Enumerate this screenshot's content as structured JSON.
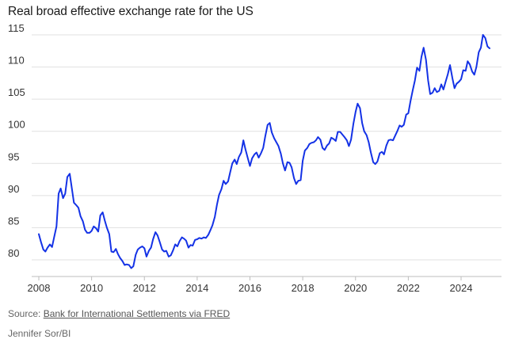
{
  "title": "Real broad effective exchange rate for the US",
  "source_prefix": "Source: ",
  "source_link": "Bank for International Settlements via FRED",
  "credit": "Jennifer Sor/BI",
  "colors": {
    "line": "#1432e6",
    "grid": "#e0e0e0",
    "axis": "#bdbdbd"
  },
  "chart_data": {
    "type": "line",
    "title": "Real broad effective exchange rate for the US",
    "xlabel": "",
    "ylabel": "",
    "xlim": [
      2007.5,
      2025.5
    ],
    "ylim": [
      78,
      116
    ],
    "grid": true,
    "x_ticks": [
      2008,
      2010,
      2012,
      2014,
      2016,
      2018,
      2020,
      2022,
      2024
    ],
    "y_ticks": [
      80,
      85,
      90,
      95,
      100,
      105,
      110,
      115
    ],
    "series": [
      {
        "name": "Real broad effective exchange rate",
        "points": [
          [
            2008.0,
            84.0
          ],
          [
            2008.08,
            82.8
          ],
          [
            2008.17,
            81.6
          ],
          [
            2008.25,
            81.3
          ],
          [
            2008.33,
            81.9
          ],
          [
            2008.42,
            82.4
          ],
          [
            2008.5,
            82.0
          ],
          [
            2008.58,
            83.5
          ],
          [
            2008.67,
            85.2
          ],
          [
            2008.75,
            90.3
          ],
          [
            2008.83,
            91.1
          ],
          [
            2008.92,
            89.6
          ],
          [
            2009.0,
            90.3
          ],
          [
            2009.08,
            92.9
          ],
          [
            2009.17,
            93.4
          ],
          [
            2009.25,
            91.2
          ],
          [
            2009.33,
            88.9
          ],
          [
            2009.42,
            88.5
          ],
          [
            2009.5,
            88.1
          ],
          [
            2009.58,
            86.8
          ],
          [
            2009.67,
            86.0
          ],
          [
            2009.75,
            84.7
          ],
          [
            2009.83,
            84.2
          ],
          [
            2009.92,
            84.2
          ],
          [
            2010.0,
            84.5
          ],
          [
            2010.08,
            85.2
          ],
          [
            2010.17,
            84.9
          ],
          [
            2010.25,
            84.4
          ],
          [
            2010.33,
            86.9
          ],
          [
            2010.42,
            87.4
          ],
          [
            2010.5,
            86.1
          ],
          [
            2010.58,
            85.0
          ],
          [
            2010.67,
            84.0
          ],
          [
            2010.75,
            81.3
          ],
          [
            2010.83,
            81.2
          ],
          [
            2010.92,
            81.7
          ],
          [
            2011.0,
            80.9
          ],
          [
            2011.08,
            80.3
          ],
          [
            2011.17,
            79.8
          ],
          [
            2011.25,
            79.2
          ],
          [
            2011.33,
            79.3
          ],
          [
            2011.42,
            79.2
          ],
          [
            2011.5,
            78.7
          ],
          [
            2011.58,
            79.0
          ],
          [
            2011.67,
            80.8
          ],
          [
            2011.75,
            81.6
          ],
          [
            2011.83,
            81.9
          ],
          [
            2011.92,
            82.1
          ],
          [
            2012.0,
            81.8
          ],
          [
            2012.08,
            80.5
          ],
          [
            2012.17,
            81.4
          ],
          [
            2012.25,
            81.9
          ],
          [
            2012.33,
            83.2
          ],
          [
            2012.42,
            84.3
          ],
          [
            2012.5,
            83.8
          ],
          [
            2012.58,
            82.8
          ],
          [
            2012.67,
            81.6
          ],
          [
            2012.75,
            81.3
          ],
          [
            2012.83,
            81.4
          ],
          [
            2012.92,
            80.5
          ],
          [
            2013.0,
            80.7
          ],
          [
            2013.08,
            81.4
          ],
          [
            2013.17,
            82.4
          ],
          [
            2013.25,
            82.1
          ],
          [
            2013.33,
            82.9
          ],
          [
            2013.42,
            83.5
          ],
          [
            2013.5,
            83.3
          ],
          [
            2013.58,
            83.0
          ],
          [
            2013.67,
            81.9
          ],
          [
            2013.75,
            82.3
          ],
          [
            2013.83,
            82.2
          ],
          [
            2013.92,
            83.1
          ],
          [
            2014.0,
            83.2
          ],
          [
            2014.08,
            83.4
          ],
          [
            2014.17,
            83.3
          ],
          [
            2014.25,
            83.5
          ],
          [
            2014.33,
            83.4
          ],
          [
            2014.42,
            83.9
          ],
          [
            2014.5,
            84.6
          ],
          [
            2014.58,
            85.4
          ],
          [
            2014.67,
            86.7
          ],
          [
            2014.75,
            88.6
          ],
          [
            2014.83,
            90.1
          ],
          [
            2014.92,
            91.0
          ],
          [
            2015.0,
            92.3
          ],
          [
            2015.08,
            91.8
          ],
          [
            2015.17,
            92.2
          ],
          [
            2015.25,
            93.6
          ],
          [
            2015.33,
            95.0
          ],
          [
            2015.42,
            95.6
          ],
          [
            2015.5,
            94.9
          ],
          [
            2015.58,
            96.0
          ],
          [
            2015.67,
            96.7
          ],
          [
            2015.75,
            98.6
          ],
          [
            2015.83,
            97.2
          ],
          [
            2015.92,
            95.8
          ],
          [
            2016.0,
            94.6
          ],
          [
            2016.08,
            95.8
          ],
          [
            2016.17,
            96.4
          ],
          [
            2016.25,
            96.7
          ],
          [
            2016.33,
            95.9
          ],
          [
            2016.42,
            96.6
          ],
          [
            2016.5,
            97.4
          ],
          [
            2016.58,
            99.2
          ],
          [
            2016.67,
            101.0
          ],
          [
            2016.75,
            101.3
          ],
          [
            2016.83,
            99.8
          ],
          [
            2016.92,
            98.9
          ],
          [
            2017.0,
            98.3
          ],
          [
            2017.08,
            97.7
          ],
          [
            2017.17,
            96.5
          ],
          [
            2017.25,
            95.0
          ],
          [
            2017.33,
            93.9
          ],
          [
            2017.42,
            95.2
          ],
          [
            2017.5,
            95.1
          ],
          [
            2017.58,
            94.4
          ],
          [
            2017.67,
            92.7
          ],
          [
            2017.75,
            91.8
          ],
          [
            2017.83,
            92.3
          ],
          [
            2017.92,
            92.4
          ],
          [
            2018.0,
            95.4
          ],
          [
            2018.08,
            97.0
          ],
          [
            2018.17,
            97.4
          ],
          [
            2018.25,
            98.0
          ],
          [
            2018.33,
            98.2
          ],
          [
            2018.42,
            98.3
          ],
          [
            2018.5,
            98.6
          ],
          [
            2018.58,
            99.1
          ],
          [
            2018.67,
            98.7
          ],
          [
            2018.75,
            97.4
          ],
          [
            2018.83,
            97.1
          ],
          [
            2018.92,
            97.8
          ],
          [
            2019.0,
            98.1
          ],
          [
            2019.08,
            99.0
          ],
          [
            2019.17,
            98.8
          ],
          [
            2019.25,
            98.5
          ],
          [
            2019.33,
            99.9
          ],
          [
            2019.42,
            99.9
          ],
          [
            2019.5,
            99.5
          ],
          [
            2019.58,
            99.1
          ],
          [
            2019.67,
            98.6
          ],
          [
            2019.75,
            97.7
          ],
          [
            2019.83,
            98.7
          ],
          [
            2019.92,
            101.2
          ],
          [
            2020.0,
            103.0
          ],
          [
            2020.08,
            104.3
          ],
          [
            2020.17,
            103.6
          ],
          [
            2020.25,
            101.3
          ],
          [
            2020.33,
            100.0
          ],
          [
            2020.42,
            99.4
          ],
          [
            2020.5,
            98.3
          ],
          [
            2020.58,
            96.7
          ],
          [
            2020.67,
            95.2
          ],
          [
            2020.75,
            94.9
          ],
          [
            2020.83,
            95.3
          ],
          [
            2020.92,
            96.6
          ],
          [
            2021.0,
            96.8
          ],
          [
            2021.08,
            96.4
          ],
          [
            2021.17,
            97.8
          ],
          [
            2021.25,
            98.6
          ],
          [
            2021.33,
            98.7
          ],
          [
            2021.42,
            98.6
          ],
          [
            2021.5,
            99.3
          ],
          [
            2021.58,
            100.0
          ],
          [
            2021.67,
            100.9
          ],
          [
            2021.75,
            100.7
          ],
          [
            2021.83,
            101.0
          ],
          [
            2021.92,
            102.6
          ],
          [
            2022.0,
            102.8
          ],
          [
            2022.08,
            104.6
          ],
          [
            2022.17,
            106.4
          ],
          [
            2022.25,
            107.9
          ],
          [
            2022.33,
            109.9
          ],
          [
            2022.42,
            109.4
          ],
          [
            2022.5,
            111.6
          ],
          [
            2022.58,
            113.0
          ],
          [
            2022.67,
            111.1
          ],
          [
            2022.75,
            107.9
          ],
          [
            2022.83,
            105.8
          ],
          [
            2022.92,
            106.0
          ],
          [
            2023.0,
            106.7
          ],
          [
            2023.08,
            106.1
          ],
          [
            2023.17,
            106.3
          ],
          [
            2023.25,
            107.3
          ],
          [
            2023.33,
            106.5
          ],
          [
            2023.42,
            107.8
          ],
          [
            2023.5,
            108.9
          ],
          [
            2023.58,
            110.3
          ],
          [
            2023.67,
            108.3
          ],
          [
            2023.75,
            106.7
          ],
          [
            2023.83,
            107.4
          ],
          [
            2023.92,
            107.7
          ],
          [
            2024.0,
            108.1
          ],
          [
            2024.08,
            109.5
          ],
          [
            2024.17,
            109.4
          ],
          [
            2024.25,
            110.9
          ],
          [
            2024.33,
            110.4
          ],
          [
            2024.42,
            109.3
          ],
          [
            2024.5,
            108.8
          ],
          [
            2024.58,
            110.0
          ],
          [
            2024.67,
            112.3
          ],
          [
            2024.75,
            113.0
          ],
          [
            2024.83,
            115.0
          ],
          [
            2024.92,
            114.5
          ],
          [
            2025.0,
            113.2
          ],
          [
            2025.08,
            112.9
          ]
        ]
      }
    ]
  }
}
